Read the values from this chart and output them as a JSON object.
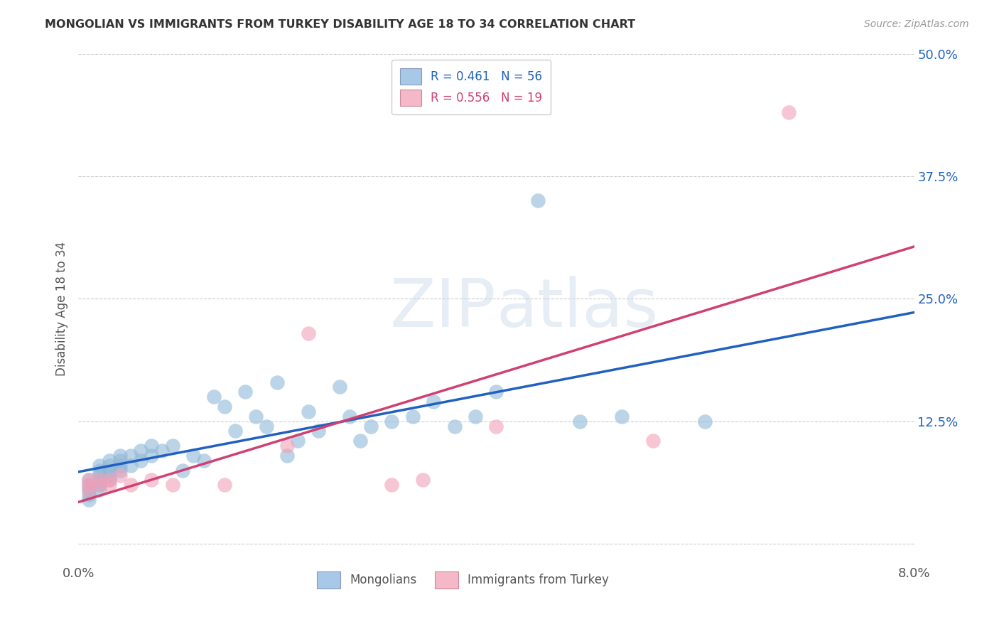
{
  "title": "MONGOLIAN VS IMMIGRANTS FROM TURKEY DISABILITY AGE 18 TO 34 CORRELATION CHART",
  "source": "Source: ZipAtlas.com",
  "ylabel": "Disability Age 18 to 34",
  "x_min": 0.0,
  "x_max": 0.08,
  "y_min": -0.02,
  "y_max": 0.5,
  "y_ticks": [
    0.0,
    0.125,
    0.25,
    0.375,
    0.5
  ],
  "y_tick_labels": [
    "",
    "12.5%",
    "25.0%",
    "37.5%",
    "50.0%"
  ],
  "legend_entries": [
    {
      "label": "Mongolians",
      "color": "#a8c8e8",
      "R": "0.461",
      "N": "56"
    },
    {
      "label": "Immigrants from Turkey",
      "color": "#f4b8c8",
      "R": "0.556",
      "N": "19"
    }
  ],
  "mongolian_scatter_color": "#90b8d8",
  "turkey_scatter_color": "#f0a0b8",
  "mongolian_line_color": "#2060c0",
  "turkey_line_color": "#d04070",
  "background_color": "#ffffff",
  "watermark_zip": "ZIP",
  "watermark_atlas": "atlas",
  "grid_color": "#cccccc",
  "mongolian_x": [
    0.001,
    0.001,
    0.001,
    0.001,
    0.001,
    0.002,
    0.002,
    0.002,
    0.002,
    0.002,
    0.002,
    0.003,
    0.003,
    0.003,
    0.003,
    0.003,
    0.004,
    0.004,
    0.004,
    0.004,
    0.005,
    0.005,
    0.006,
    0.006,
    0.007,
    0.007,
    0.008,
    0.009,
    0.01,
    0.011,
    0.012,
    0.013,
    0.014,
    0.015,
    0.016,
    0.017,
    0.018,
    0.019,
    0.02,
    0.021,
    0.022,
    0.023,
    0.025,
    0.026,
    0.027,
    0.028,
    0.03,
    0.032,
    0.034,
    0.036,
    0.038,
    0.04,
    0.044,
    0.048,
    0.052,
    0.06
  ],
  "mongolian_y": [
    0.05,
    0.045,
    0.055,
    0.06,
    0.065,
    0.055,
    0.06,
    0.065,
    0.07,
    0.075,
    0.08,
    0.065,
    0.07,
    0.075,
    0.08,
    0.085,
    0.075,
    0.08,
    0.085,
    0.09,
    0.08,
    0.09,
    0.085,
    0.095,
    0.09,
    0.1,
    0.095,
    0.1,
    0.075,
    0.09,
    0.085,
    0.15,
    0.14,
    0.115,
    0.155,
    0.13,
    0.12,
    0.165,
    0.09,
    0.105,
    0.135,
    0.115,
    0.16,
    0.13,
    0.105,
    0.12,
    0.125,
    0.13,
    0.145,
    0.12,
    0.13,
    0.155,
    0.35,
    0.125,
    0.13,
    0.125
  ],
  "turkey_x": [
    0.001,
    0.001,
    0.001,
    0.002,
    0.002,
    0.003,
    0.003,
    0.004,
    0.005,
    0.007,
    0.009,
    0.014,
    0.02,
    0.022,
    0.03,
    0.033,
    0.04,
    0.055,
    0.068
  ],
  "turkey_y": [
    0.055,
    0.06,
    0.065,
    0.06,
    0.065,
    0.06,
    0.065,
    0.07,
    0.06,
    0.065,
    0.06,
    0.06,
    0.1,
    0.215,
    0.06,
    0.065,
    0.12,
    0.105,
    0.44
  ]
}
